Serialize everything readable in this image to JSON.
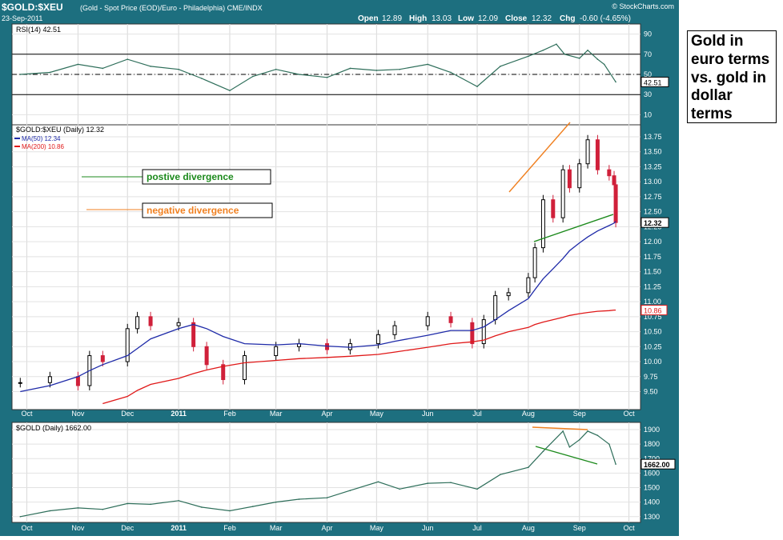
{
  "header": {
    "symbol": "$GOLD:$XEU",
    "description": "(Gold - Spot Price (EOD)/Euro - Philadelphia) CME/INDX",
    "watermark": "© StockCharts.com",
    "date": "23-Sep-2011",
    "quote": {
      "open_label": "Open",
      "open": "12.89",
      "high_label": "High",
      "high": "13.03",
      "low_label": "Low",
      "low": "12.09",
      "close_label": "Close",
      "close": "12.32",
      "chg_label": "Chg",
      "chg": "-0.60 (-4.65%)"
    }
  },
  "note": {
    "text": "Gold in euro terms vs. gold in dollar terms"
  },
  "legend_box": {
    "positive": "postive divergence",
    "negative": "negative divergence"
  },
  "colors": {
    "frame": "#1d6f7f",
    "candle_up": "#000000",
    "candle_down": "#d0203a",
    "ma50": "#1e2aa8",
    "ma200": "#e01818",
    "rsi": "#2e6e5a",
    "positive": "#1c8a1c",
    "negative": "#f08020"
  },
  "x_axis_labels": [
    "Oct",
    "Nov",
    "Dec",
    "2011",
    "Feb",
    "Mar",
    "Apr",
    "May",
    "Jun",
    "Jul",
    "Aug",
    "Sep",
    "Oct"
  ],
  "chart_data": [
    {
      "type": "line",
      "panel": "rsi",
      "legend": "RSI(14) 42.51",
      "last_value_label": "42.51",
      "ylim": [
        0,
        100
      ],
      "y_ticks": [
        90,
        70,
        50,
        30,
        10
      ],
      "reference_lines": [
        70,
        50,
        30
      ],
      "x": [
        "2010-09-27",
        "2010-10-15",
        "2010-11-01",
        "2010-11-16",
        "2010-12-01",
        "2010-12-15",
        "2011-01-01",
        "2011-01-15",
        "2011-02-01",
        "2011-02-15",
        "2011-03-01",
        "2011-03-15",
        "2011-04-01",
        "2011-04-15",
        "2011-05-01",
        "2011-05-15",
        "2011-06-01",
        "2011-06-15",
        "2011-07-01",
        "2011-07-15",
        "2011-08-01",
        "2011-08-10",
        "2011-08-18",
        "2011-08-23",
        "2011-09-01",
        "2011-09-06",
        "2011-09-12",
        "2011-09-16",
        "2011-09-23"
      ],
      "values": [
        50,
        52,
        60,
        56,
        65,
        58,
        55,
        46,
        34,
        48,
        55,
        50,
        47,
        56,
        54,
        55,
        60,
        52,
        38,
        58,
        68,
        74,
        80,
        70,
        66,
        74,
        65,
        60,
        42.51
      ]
    },
    {
      "type": "candlestick",
      "panel": "price",
      "legend": "$GOLD:$XEU (Daily) 12.32",
      "last_value_label": "12.32",
      "ylim": [
        9.2,
        13.95
      ],
      "y_ticks": [
        13.75,
        13.5,
        13.25,
        13.0,
        12.75,
        12.5,
        12.25,
        12.0,
        11.75,
        11.5,
        11.25,
        11.0,
        10.75,
        10.5,
        10.25,
        10.0,
        9.75,
        9.5
      ],
      "x": [
        "2010-09-27",
        "2010-10-15",
        "2010-11-01",
        "2010-11-08",
        "2010-11-16",
        "2010-12-01",
        "2010-12-07",
        "2010-12-15",
        "2011-01-01",
        "2011-01-10",
        "2011-01-18",
        "2011-01-28",
        "2011-02-10",
        "2011-03-01",
        "2011-03-15",
        "2011-04-01",
        "2011-04-15",
        "2011-05-02",
        "2011-05-12",
        "2011-06-01",
        "2011-06-15",
        "2011-06-28",
        "2011-07-05",
        "2011-07-12",
        "2011-07-20",
        "2011-08-01",
        "2011-08-05",
        "2011-08-10",
        "2011-08-16",
        "2011-08-22",
        "2011-08-26",
        "2011-09-01",
        "2011-09-06",
        "2011-09-12",
        "2011-09-19",
        "2011-09-22",
        "2011-09-23"
      ],
      "close": [
        9.65,
        9.75,
        9.6,
        10.1,
        10.0,
        10.55,
        10.75,
        10.6,
        10.65,
        10.25,
        9.95,
        9.7,
        10.1,
        10.25,
        10.3,
        10.2,
        10.3,
        10.45,
        10.6,
        10.75,
        10.65,
        10.3,
        10.7,
        11.1,
        11.15,
        11.4,
        11.9,
        12.7,
        12.4,
        13.2,
        12.9,
        13.3,
        13.7,
        13.2,
        13.1,
        12.95,
        12.32
      ],
      "series": [
        {
          "name": "MA(50) 12.34",
          "values": [
            9.5,
            9.6,
            9.75,
            9.85,
            9.95,
            10.1,
            10.22,
            10.38,
            10.55,
            10.62,
            10.55,
            10.42,
            10.3,
            10.28,
            10.3,
            10.26,
            10.24,
            10.28,
            10.34,
            10.44,
            10.52,
            10.52,
            10.58,
            10.7,
            10.85,
            11.05,
            11.2,
            11.38,
            11.55,
            11.72,
            11.85,
            11.98,
            12.08,
            12.18,
            12.27,
            12.31,
            12.34
          ]
        },
        {
          "name": "MA(200) 10.86",
          "values": [
            null,
            null,
            null,
            null,
            9.3,
            9.42,
            9.52,
            9.62,
            9.72,
            9.8,
            9.86,
            9.92,
            9.98,
            10.02,
            10.05,
            10.07,
            10.09,
            10.12,
            10.16,
            10.24,
            10.3,
            10.33,
            10.36,
            10.43,
            10.5,
            10.57,
            10.62,
            10.66,
            10.7,
            10.74,
            10.77,
            10.8,
            10.82,
            10.84,
            10.85,
            10.86,
            10.86
          ]
        }
      ],
      "ma200_label": "10.86"
    },
    {
      "type": "line",
      "panel": "gold_usd",
      "legend": "$GOLD (Daily) 1662.00",
      "last_value_label": "1662.00",
      "ylim": [
        1260,
        1950
      ],
      "y_ticks": [
        1900,
        1800,
        1700,
        1600,
        1500,
        1400,
        1300
      ],
      "x": [
        "2010-09-27",
        "2010-10-15",
        "2010-11-01",
        "2010-11-16",
        "2010-12-01",
        "2010-12-15",
        "2011-01-01",
        "2011-01-15",
        "2011-02-01",
        "2011-02-15",
        "2011-03-01",
        "2011-03-15",
        "2011-04-01",
        "2011-04-15",
        "2011-05-02",
        "2011-05-15",
        "2011-06-01",
        "2011-06-15",
        "2011-07-01",
        "2011-07-15",
        "2011-08-01",
        "2011-08-10",
        "2011-08-22",
        "2011-08-26",
        "2011-09-01",
        "2011-09-06",
        "2011-09-12",
        "2011-09-19",
        "2011-09-23"
      ],
      "values": [
        1300,
        1340,
        1360,
        1350,
        1390,
        1385,
        1410,
        1365,
        1340,
        1370,
        1400,
        1420,
        1430,
        1480,
        1540,
        1490,
        1530,
        1535,
        1490,
        1590,
        1640,
        1750,
        1890,
        1780,
        1830,
        1890,
        1860,
        1800,
        1662
      ]
    }
  ]
}
